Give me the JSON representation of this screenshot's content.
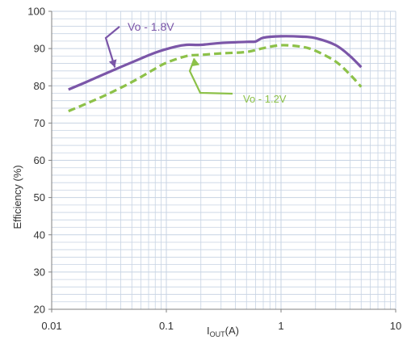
{
  "chart_data": {
    "type": "line",
    "xlabel_main": "I",
    "xlabel_sub": "OUT",
    "xlabel_unit": "(A)",
    "ylabel": "Efficiency (%)",
    "x_scale": "log",
    "xlim": [
      0.01,
      10
    ],
    "ylim": [
      20,
      100
    ],
    "x_ticks": [
      "0.01",
      "0.1",
      "1",
      "10"
    ],
    "y_ticks": [
      "20",
      "30",
      "40",
      "50",
      "60",
      "70",
      "80",
      "90",
      "100"
    ],
    "grid": true,
    "colors": {
      "vo18": "#7B56A8",
      "vo12": "#8DC149",
      "grid": "#C7D3E3"
    },
    "series": [
      {
        "name": "Vo - 1.8V",
        "style": "solid",
        "x": [
          0.014,
          0.02,
          0.03,
          0.05,
          0.08,
          0.12,
          0.15,
          0.2,
          0.3,
          0.5,
          0.6,
          0.7,
          1.0,
          1.5,
          2.0,
          3.0,
          4.0,
          5.0
        ],
        "y": [
          79.0,
          81.0,
          83.4,
          86.3,
          88.9,
          90.5,
          91.0,
          91.0,
          91.5,
          91.8,
          91.9,
          92.9,
          93.3,
          93.2,
          92.8,
          90.9,
          88.0,
          85.0
        ]
      },
      {
        "name": "Vo - 1.2V",
        "style": "dashed",
        "x": [
          0.014,
          0.02,
          0.03,
          0.05,
          0.08,
          0.1,
          0.15,
          0.2,
          0.3,
          0.5,
          0.7,
          1.0,
          1.5,
          2.0,
          3.0,
          4.0,
          5.0
        ],
        "y": [
          73.2,
          75.2,
          77.6,
          81.0,
          84.6,
          86.2,
          88.0,
          88.3,
          88.7,
          89.1,
          90.1,
          90.9,
          90.5,
          89.4,
          86.5,
          83.0,
          79.7
        ]
      }
    ],
    "annotations": [
      {
        "text": "Vo - 1.8V",
        "series": 0,
        "target_x": 0.035,
        "target_y": 84.5
      },
      {
        "text": "Vo - 1.2V",
        "series": 1,
        "target_x": 0.17,
        "target_y": 88.0
      }
    ]
  }
}
